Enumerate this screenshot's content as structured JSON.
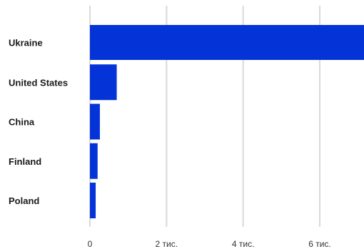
{
  "chart_data": {
    "type": "bar",
    "orientation": "horizontal",
    "categories": [
      "Ukraine",
      "United States",
      "China",
      "Finland",
      "Poland"
    ],
    "values": [
      7500,
      700,
      260,
      200,
      150
    ],
    "xlim": [
      0,
      7000
    ],
    "xticks": [
      {
        "value": 0,
        "label": "0"
      },
      {
        "value": 2000,
        "label": "2 тис."
      },
      {
        "value": 4000,
        "label": "4 тис."
      },
      {
        "value": 6000,
        "label": "6 тис."
      }
    ],
    "bar_color": "#0433d8",
    "grid_color": "#d9d9d9",
    "grid": true,
    "legend": "none",
    "title": "",
    "xlabel": "",
    "ylabel": ""
  }
}
